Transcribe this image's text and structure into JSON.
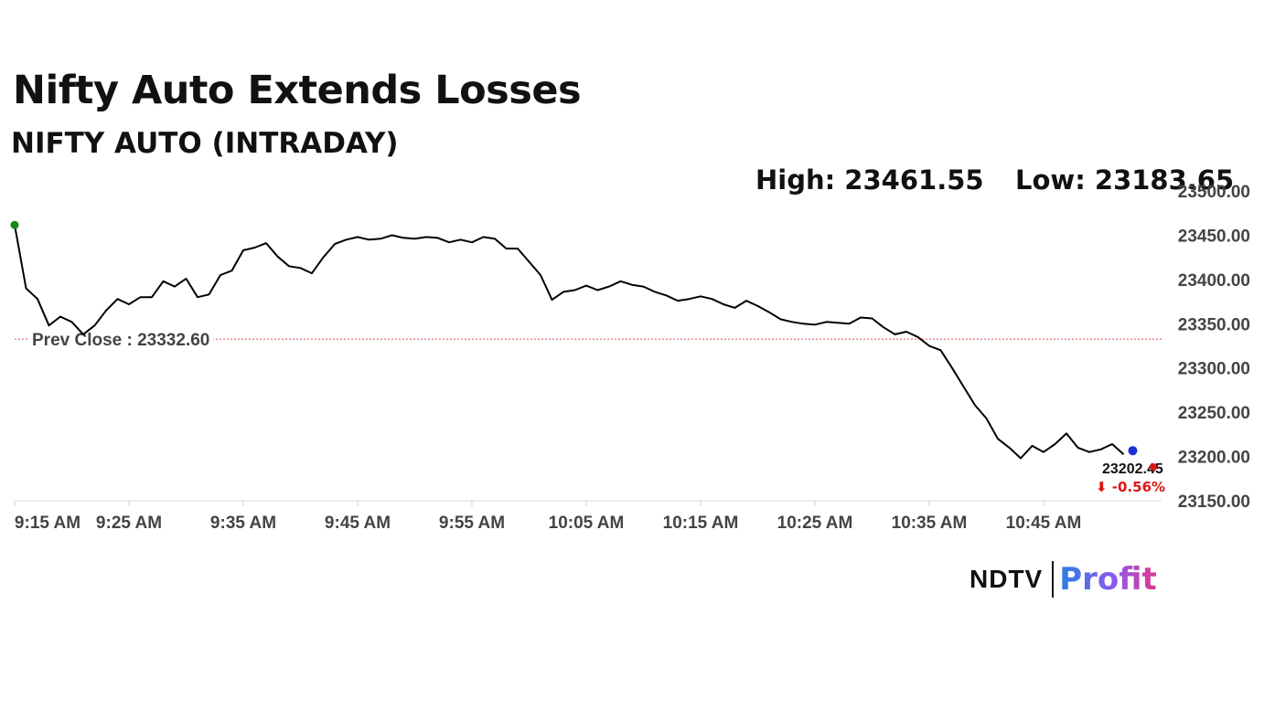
{
  "header": {
    "headline": "Nifty Auto Extends Losses",
    "subtitle": "NIFTY AUTO (INTRADAY)",
    "high_text": "High: 23461.55",
    "low_text": "Low: 23183.65"
  },
  "logo": {
    "brand": "NDTV",
    "product": "Profit"
  },
  "colors": {
    "line": "#000000",
    "start_marker": "#138a13",
    "end_marker": "#1a2fd6",
    "change_marker": "#e01414",
    "prev_close_line": "#e05050",
    "negative": "#e01414"
  },
  "chart_data": {
    "type": "line",
    "title": "NIFTY AUTO (INTRADAY)",
    "xlabel": "",
    "ylabel": "",
    "y_axis_position": "right",
    "ylim": [
      23150,
      23500
    ],
    "y_ticks": [
      23150,
      23200,
      23250,
      23300,
      23350,
      23400,
      23450,
      23500
    ],
    "y_tick_labels": [
      "23150.00",
      "23200.00",
      "23250.00",
      "23300.00",
      "23350.00",
      "23400.00",
      "23450.00",
      "23500.00"
    ],
    "x_ticks": [
      "9:15 AM",
      "9:25 AM",
      "9:35 AM",
      "9:45 AM",
      "9:55 AM",
      "10:05 AM",
      "10:15 AM",
      "10:25 AM",
      "10:35 AM",
      "10:45 AM"
    ],
    "prev_close": 23332.6,
    "prev_close_label": "Prev Close : 23332.60",
    "high": 23461.55,
    "low": 23183.65,
    "last_value": 23202.45,
    "last_value_label": "23202.45",
    "change_label": "⬇ -0.56%",
    "series": [
      {
        "x": [
          "9:15 AM",
          "9:16 AM",
          "9:17 AM",
          "9:18 AM",
          "9:19 AM",
          "9:20 AM",
          "9:21 AM",
          "9:22 AM",
          "9:23 AM",
          "9:24 AM",
          "9:25 AM",
          "9:26 AM",
          "9:27 AM",
          "9:28 AM",
          "9:29 AM",
          "9:30 AM",
          "9:31 AM",
          "9:32 AM",
          "9:33 AM",
          "9:34 AM",
          "9:35 AM",
          "9:36 AM",
          "9:37 AM",
          "9:38 AM",
          "9:39 AM",
          "9:40 AM",
          "9:41 AM",
          "9:42 AM",
          "9:43 AM",
          "9:44 AM",
          "9:45 AM",
          "9:46 AM",
          "9:47 AM",
          "9:48 AM",
          "9:49 AM",
          "9:50 AM",
          "9:51 AM",
          "9:52 AM",
          "9:53 AM",
          "9:54 AM",
          "9:55 AM",
          "9:56 AM",
          "9:57 AM",
          "9:58 AM",
          "9:59 AM",
          "10:00 AM",
          "10:01 AM",
          "10:02 AM",
          "10:03 AM",
          "10:04 AM",
          "10:05 AM",
          "10:06 AM",
          "10:07 AM",
          "10:08 AM",
          "10:09 AM",
          "10:10 AM",
          "10:11 AM",
          "10:12 AM",
          "10:13 AM",
          "10:14 AM",
          "10:15 AM",
          "10:16 AM",
          "10:17 AM",
          "10:18 AM",
          "10:19 AM",
          "10:20 AM",
          "10:21 AM",
          "10:22 AM",
          "10:23 AM",
          "10:24 AM",
          "10:25 AM",
          "10:26 AM",
          "10:27 AM",
          "10:28 AM",
          "10:29 AM",
          "10:30 AM",
          "10:31 AM",
          "10:32 AM",
          "10:33 AM",
          "10:34 AM",
          "10:35 AM",
          "10:36 AM",
          "10:37 AM",
          "10:38 AM",
          "10:39 AM",
          "10:40 AM",
          "10:41 AM",
          "10:42 AM",
          "10:43 AM",
          "10:44 AM",
          "10:45 AM",
          "10:46 AM",
          "10:47 AM",
          "10:48 AM",
          "10:49 AM",
          "10:50 AM",
          "10:51 AM",
          "10:52 AM"
        ],
        "values": [
          23461.55,
          23390,
          23378,
          23348,
          23358,
          23352,
          23338,
          23348,
          23365,
          23378,
          23372,
          23380,
          23380,
          23398,
          23392,
          23401,
          23380,
          23383,
          23405,
          23410,
          23433,
          23436,
          23441,
          23426,
          23415,
          23413,
          23407,
          23425,
          23440,
          23445,
          23448,
          23445,
          23446,
          23450,
          23447,
          23446,
          23448,
          23447,
          23442,
          23445,
          23442,
          23448,
          23446,
          23435,
          23435,
          23420,
          23405,
          23377,
          23386,
          23388,
          23393,
          23388,
          23392,
          23398,
          23394,
          23392,
          23386,
          23382,
          23376,
          23378,
          23381,
          23378,
          23372,
          23368,
          23376,
          23370,
          23363,
          23355,
          23352,
          23350,
          23349,
          23352,
          23351,
          23350,
          23357,
          23356,
          23346,
          23338,
          23341,
          23335,
          23325,
          23320,
          23300,
          23279,
          23258,
          23243,
          23220,
          23210,
          23198,
          23212,
          23205,
          23214,
          23226,
          23210,
          23205,
          23208,
          23214,
          23202.45
        ]
      }
    ]
  }
}
